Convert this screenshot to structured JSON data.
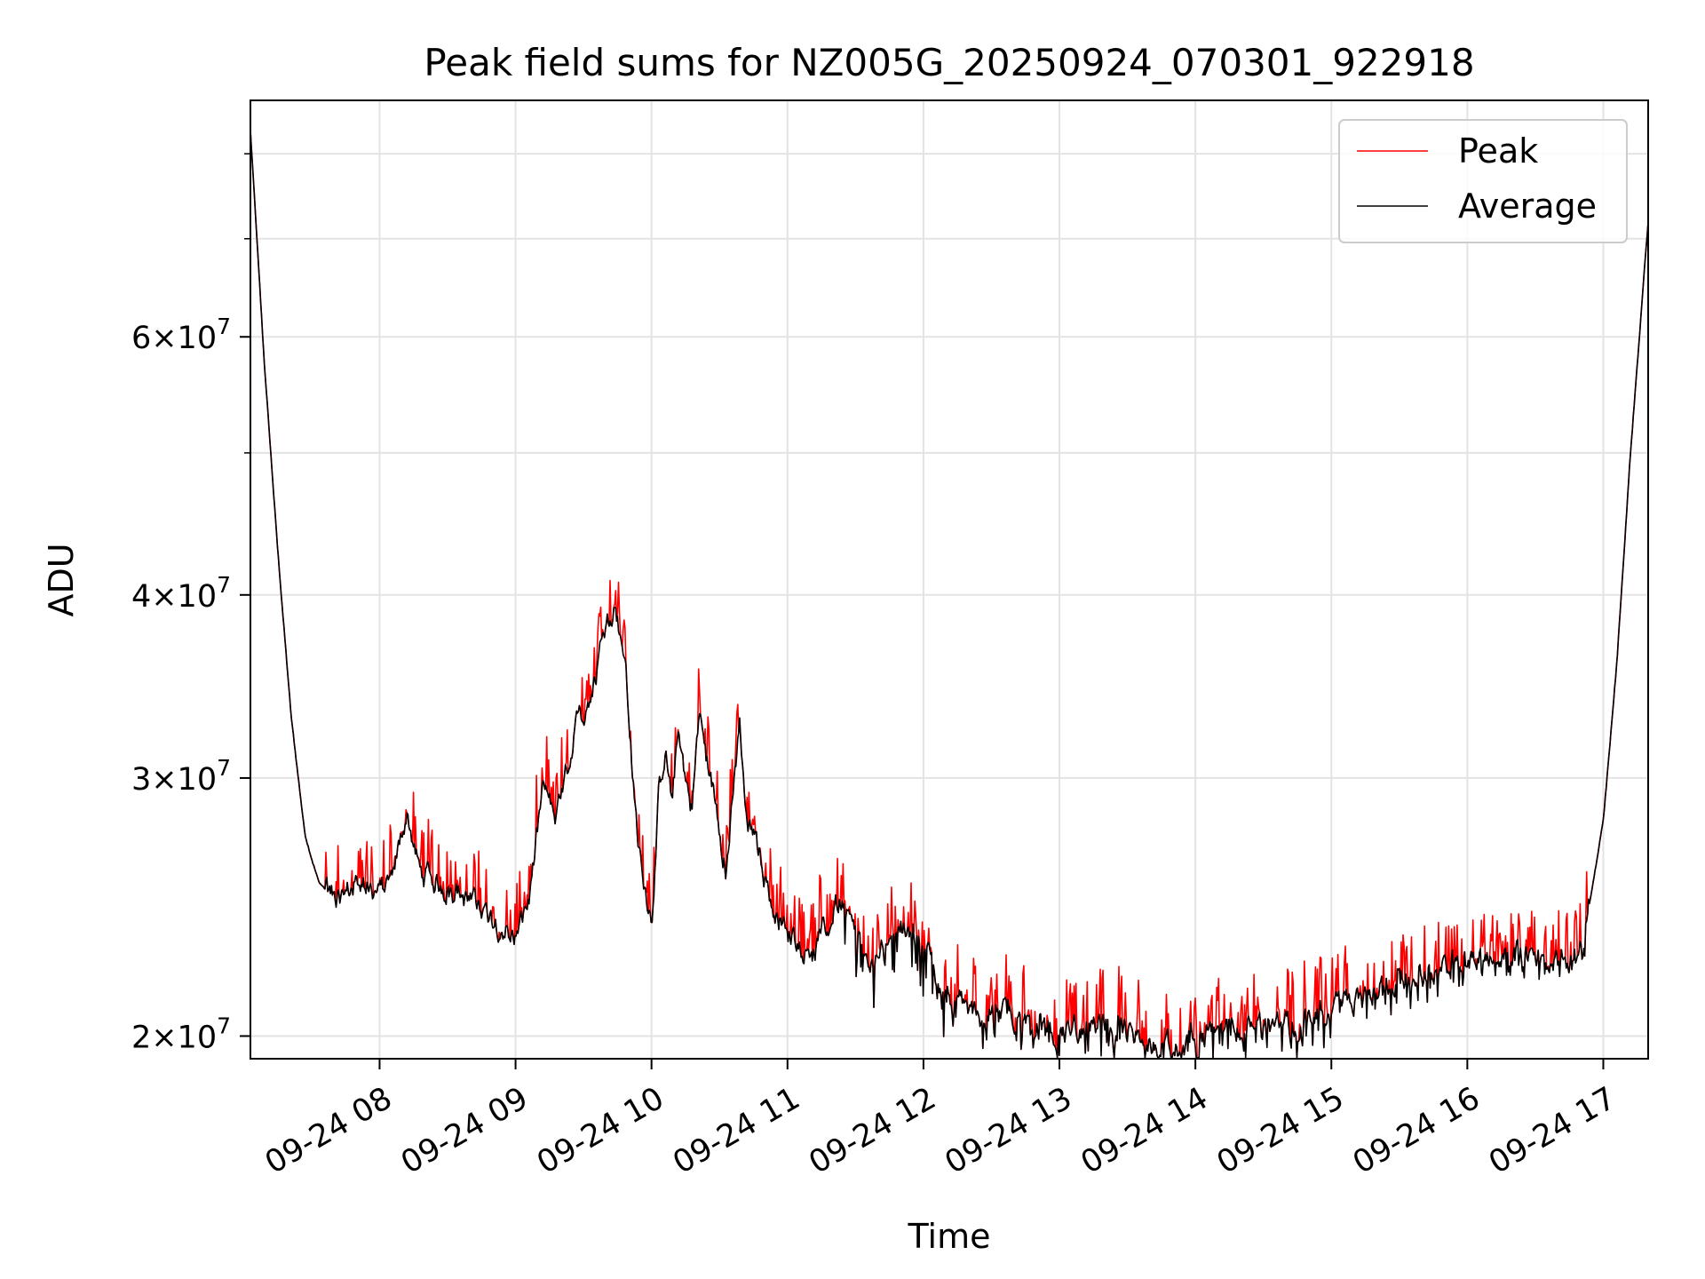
{
  "chart_data": {
    "type": "line",
    "title": "Peak field sums for NZ005G_20250924_070301_922918",
    "xlabel": "Time",
    "ylabel": "ADU",
    "yscale": "log",
    "xlim_hours": [
      7.05,
      17.33
    ],
    "ylim": [
      19300000,
      87000000
    ],
    "grid": true,
    "legend_position": "upper-right",
    "x_ticks": [
      {
        "hour": 8,
        "label": "09-24 08"
      },
      {
        "hour": 9,
        "label": "09-24 09"
      },
      {
        "hour": 10,
        "label": "09-24 10"
      },
      {
        "hour": 11,
        "label": "09-24 11"
      },
      {
        "hour": 12,
        "label": "09-24 12"
      },
      {
        "hour": 13,
        "label": "09-24 13"
      },
      {
        "hour": 14,
        "label": "09-24 14"
      },
      {
        "hour": 15,
        "label": "09-24 15"
      },
      {
        "hour": 16,
        "label": "09-24 16"
      },
      {
        "hour": 17,
        "label": "09-24 17"
      }
    ],
    "y_major_ticks": [
      {
        "value": 20000000,
        "mantissa": "2",
        "exponent": "7"
      },
      {
        "value": 30000000,
        "mantissa": "3",
        "exponent": "7"
      },
      {
        "value": 40000000,
        "mantissa": "4",
        "exponent": "7"
      },
      {
        "value": 60000000,
        "mantissa": "6",
        "exponent": "7"
      }
    ],
    "y_minor_ticks": [
      50000000,
      70000000,
      80000000
    ],
    "series": [
      {
        "name": "Peak",
        "color": "#ff0000"
      },
      {
        "name": "Average",
        "color": "#000000"
      }
    ],
    "average_control_points": {
      "x_hours": [
        7.05,
        7.15,
        7.25,
        7.35,
        7.45,
        7.55,
        7.65,
        7.75,
        7.85,
        8.0,
        8.1,
        8.2,
        8.3,
        8.5,
        8.7,
        8.85,
        9.0,
        9.1,
        9.2,
        9.3,
        9.45,
        9.55,
        9.65,
        9.72,
        9.8,
        9.9,
        10.0,
        10.05,
        10.1,
        10.15,
        10.2,
        10.25,
        10.3,
        10.35,
        10.4,
        10.5,
        10.55,
        10.65,
        10.7,
        10.8,
        10.9,
        11.0,
        11.2,
        11.4,
        11.6,
        11.8,
        12.0,
        12.1,
        12.2,
        12.3,
        12.4,
        12.6,
        12.8,
        13.0,
        13.3,
        13.6,
        13.85,
        14.0,
        14.3,
        14.7,
        15.0,
        15.3,
        15.6,
        15.9,
        16.2,
        16.5,
        16.7,
        16.85,
        17.0,
        17.1,
        17.2,
        17.33
      ],
      "values": [
        83000000,
        58000000,
        43000000,
        33000000,
        27500000,
        25500000,
        24900000,
        25000000,
        25600000,
        25000000,
        25800000,
        28500000,
        25800000,
        25300000,
        24500000,
        24000000,
        23500000,
        24500000,
        29500000,
        28000000,
        32500000,
        34000000,
        37500000,
        39500000,
        36500000,
        27000000,
        24000000,
        29000000,
        31500000,
        29000000,
        32500000,
        30000000,
        28500000,
        33500000,
        31000000,
        28000000,
        26000000,
        32500000,
        28000000,
        26500000,
        24500000,
        23500000,
        22800000,
        25000000,
        22000000,
        24000000,
        23000000,
        22000000,
        21300000,
        20800000,
        20600000,
        20800000,
        20400000,
        20200000,
        20400000,
        20000000,
        19600000,
        20000000,
        20300000,
        20300000,
        21000000,
        21500000,
        22000000,
        22500000,
        22800000,
        22700000,
        22600000,
        23200000,
        28000000,
        36000000,
        50000000,
        72000000
      ]
    }
  }
}
